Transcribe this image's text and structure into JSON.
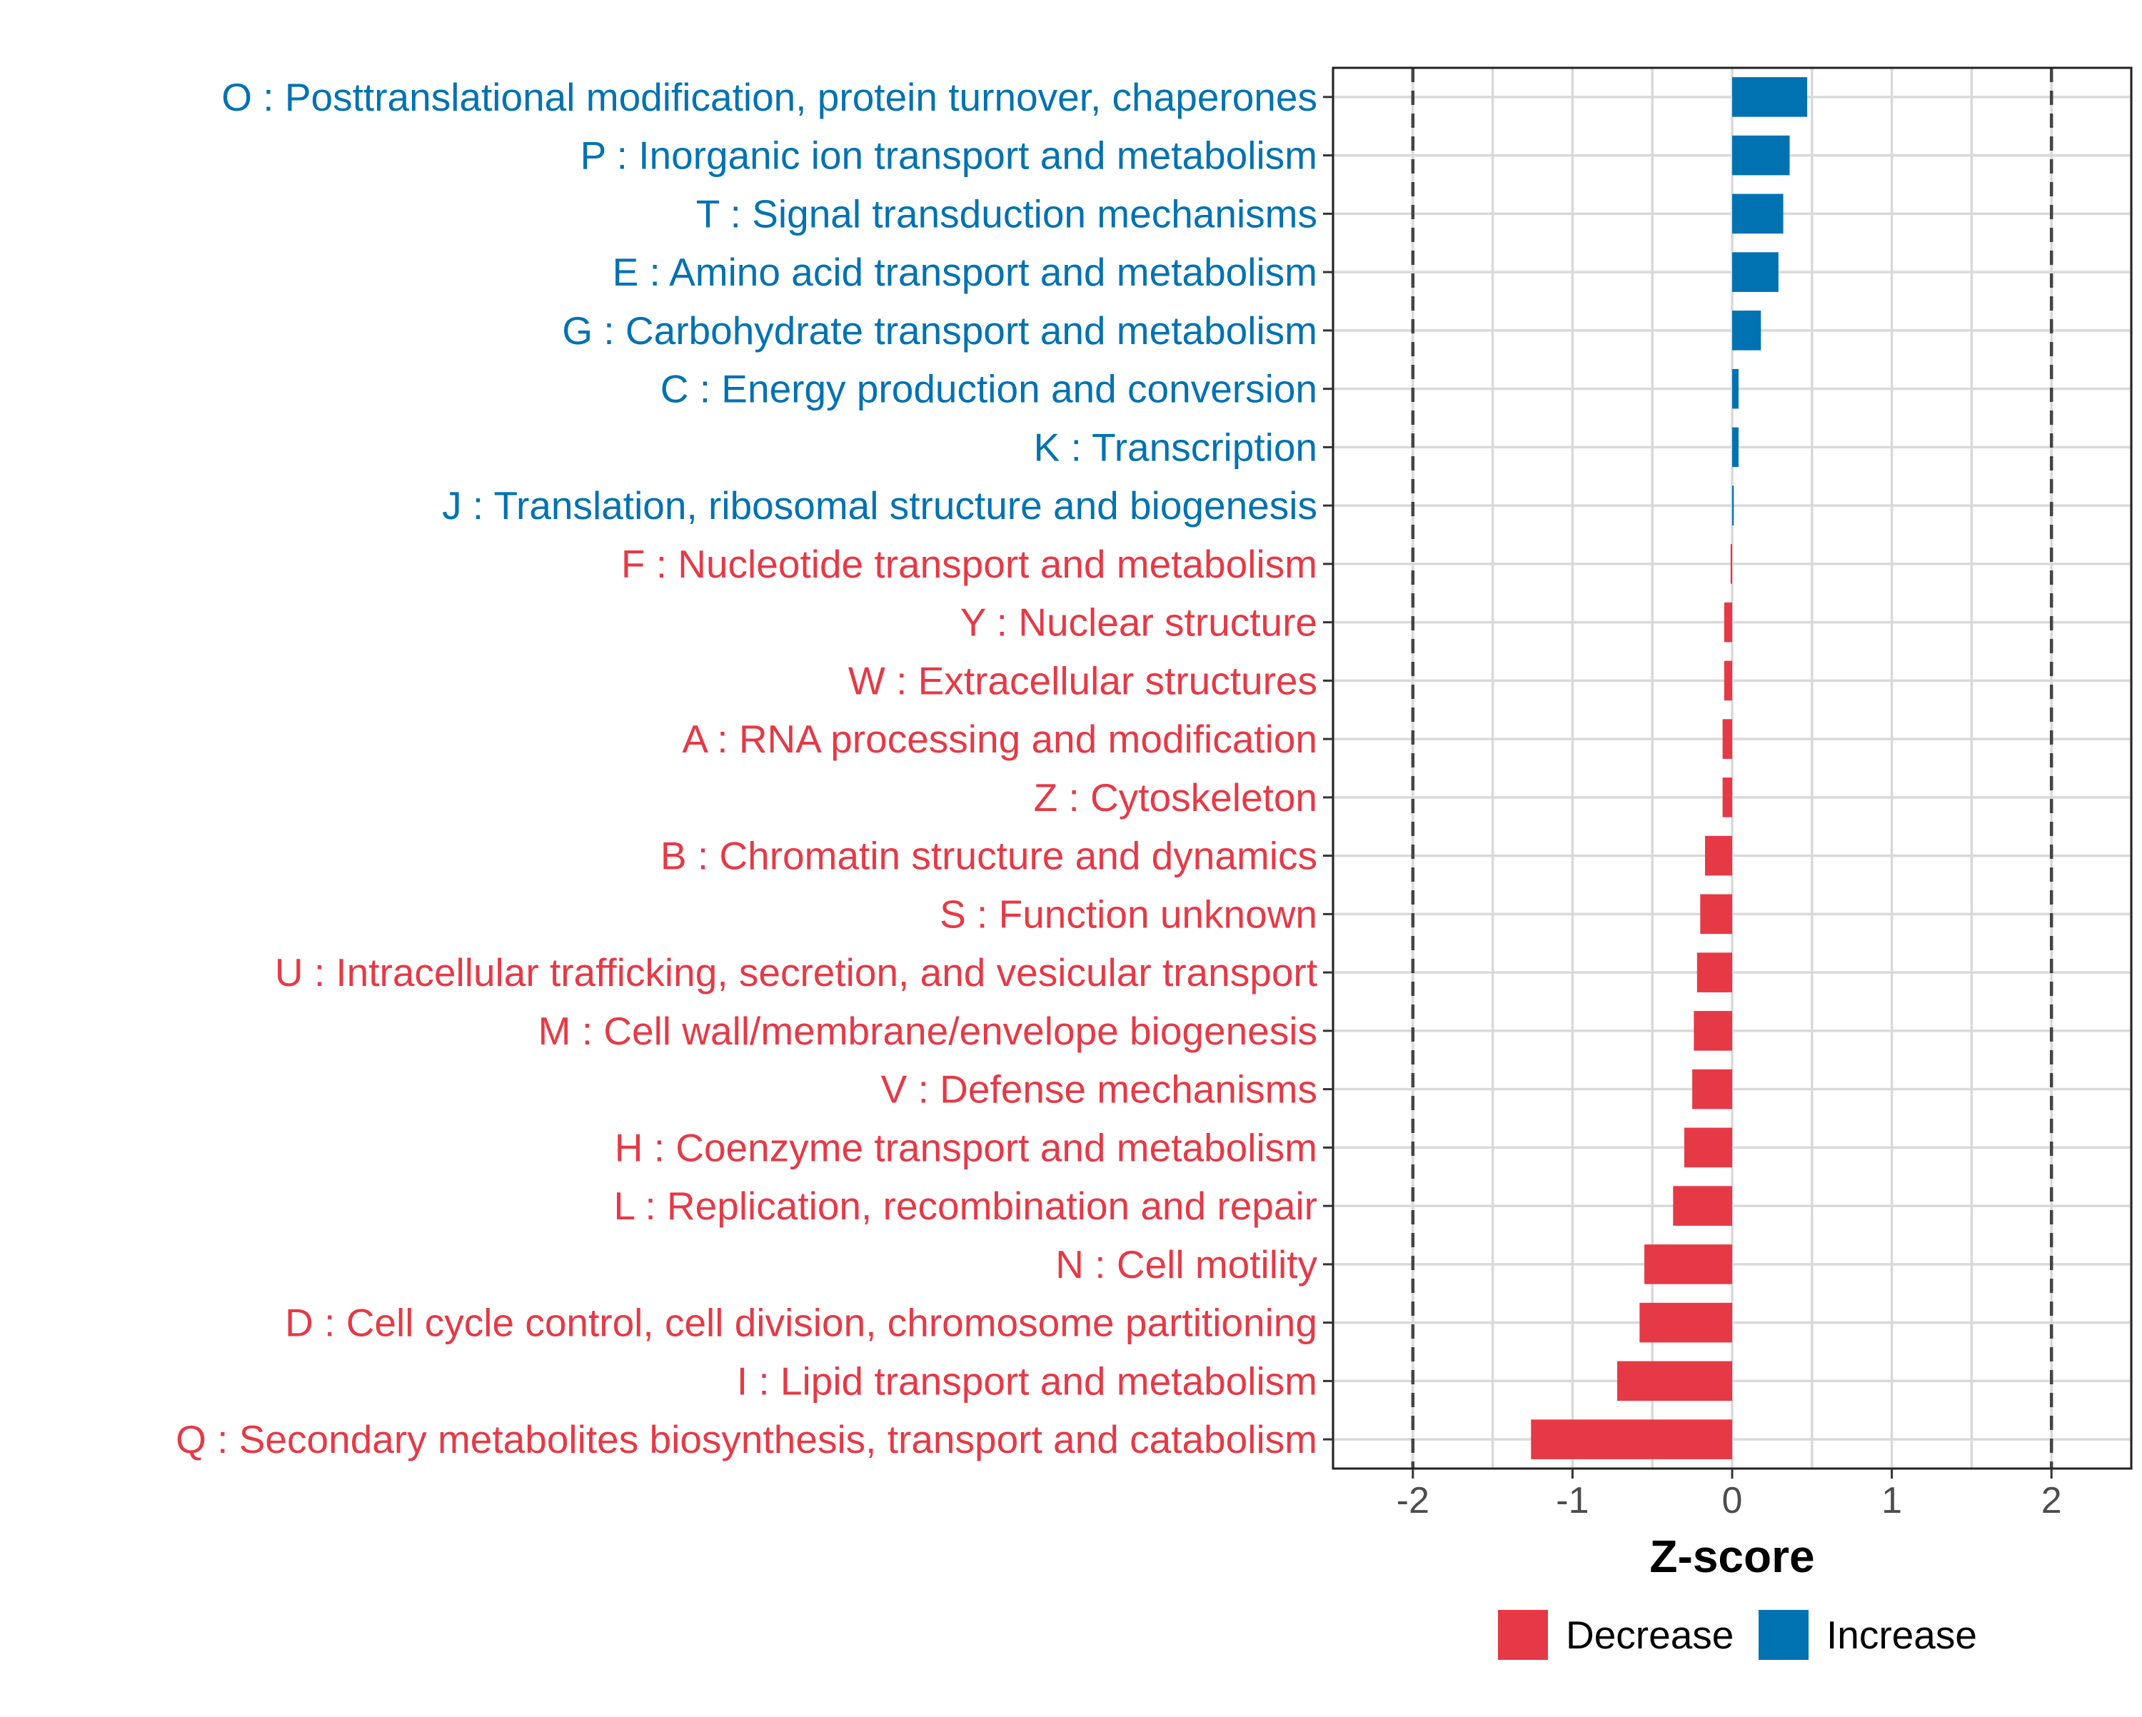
{
  "chart_data": {
    "type": "bar",
    "orientation": "horizontal",
    "title": "",
    "xlabel": "Z-score",
    "ylabel": "",
    "xlim": [
      -2.5,
      2.5
    ],
    "x_ticks": [
      -2,
      -1,
      0,
      1,
      2
    ],
    "x_tick_labels": [
      "-2",
      "-1",
      "0",
      "1",
      "2"
    ],
    "reference_lines": [
      -2,
      2
    ],
    "grid": true,
    "legend_position": "bottom",
    "colors": {
      "Decrease": "#E63946",
      "Increase": "#0072B2"
    },
    "legend": [
      {
        "name": "Decrease",
        "color": "#E63946"
      },
      {
        "name": "Increase",
        "color": "#0072B2"
      }
    ],
    "categories": [
      "O : Posttranslational modification, protein turnover, chaperones",
      "P : Inorganic ion transport and metabolism",
      "T : Signal transduction mechanisms",
      "E : Amino acid transport and metabolism",
      "G : Carbohydrate transport and metabolism",
      "C : Energy production and conversion",
      "K : Transcription",
      "J : Translation, ribosomal structure and biogenesis",
      "F : Nucleotide transport and metabolism",
      "Y : Nuclear structure",
      "W : Extracellular structures",
      "A : RNA processing and modification",
      "Z : Cytoskeleton",
      "B : Chromatin structure and dynamics",
      "S : Function unknown",
      "U : Intracellular trafficking, secretion, and vesicular transport",
      "M : Cell wall/membrane/envelope biogenesis",
      "V : Defense mechanisms",
      "H : Coenzyme transport and metabolism",
      "L : Replication, recombination and repair",
      "N : Cell motility",
      "D : Cell cycle control, cell division, chromosome partitioning",
      "I : Lipid transport and metabolism",
      "Q : Secondary metabolites biosynthesis, transport and catabolism"
    ],
    "values": [
      0.47,
      0.36,
      0.32,
      0.29,
      0.18,
      0.04,
      0.04,
      0.01,
      -0.01,
      -0.05,
      -0.05,
      -0.06,
      -0.06,
      -0.17,
      -0.2,
      -0.22,
      -0.24,
      -0.25,
      -0.3,
      -0.37,
      -0.55,
      -0.58,
      -0.72,
      -1.26
    ],
    "groups": [
      "Increase",
      "Increase",
      "Increase",
      "Increase",
      "Increase",
      "Increase",
      "Increase",
      "Increase",
      "Decrease",
      "Decrease",
      "Decrease",
      "Decrease",
      "Decrease",
      "Decrease",
      "Decrease",
      "Decrease",
      "Decrease",
      "Decrease",
      "Decrease",
      "Decrease",
      "Decrease",
      "Decrease",
      "Decrease",
      "Decrease"
    ]
  }
}
